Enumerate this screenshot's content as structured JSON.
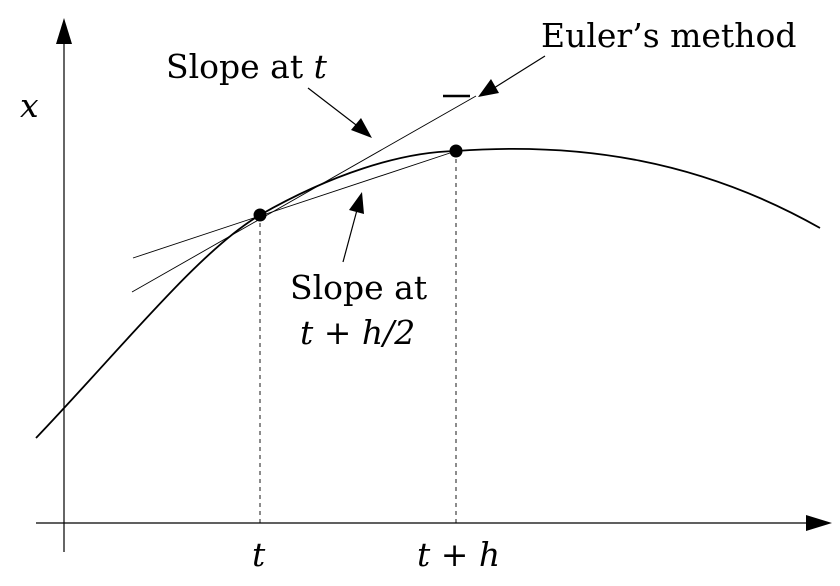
{
  "diagram": {
    "axis_y_label": "x",
    "axis_x_ticks": {
      "t": "t",
      "t_plus_h": "t + h"
    },
    "annotations": {
      "slope_at_t": {
        "prefix": "Slope at ",
        "var": "t"
      },
      "euler": "Euler’s method",
      "slope_mid_line1": "Slope at",
      "slope_mid_line2": "t + h/2"
    },
    "colors": {
      "ink": "#000000",
      "background": "#ffffff"
    }
  }
}
